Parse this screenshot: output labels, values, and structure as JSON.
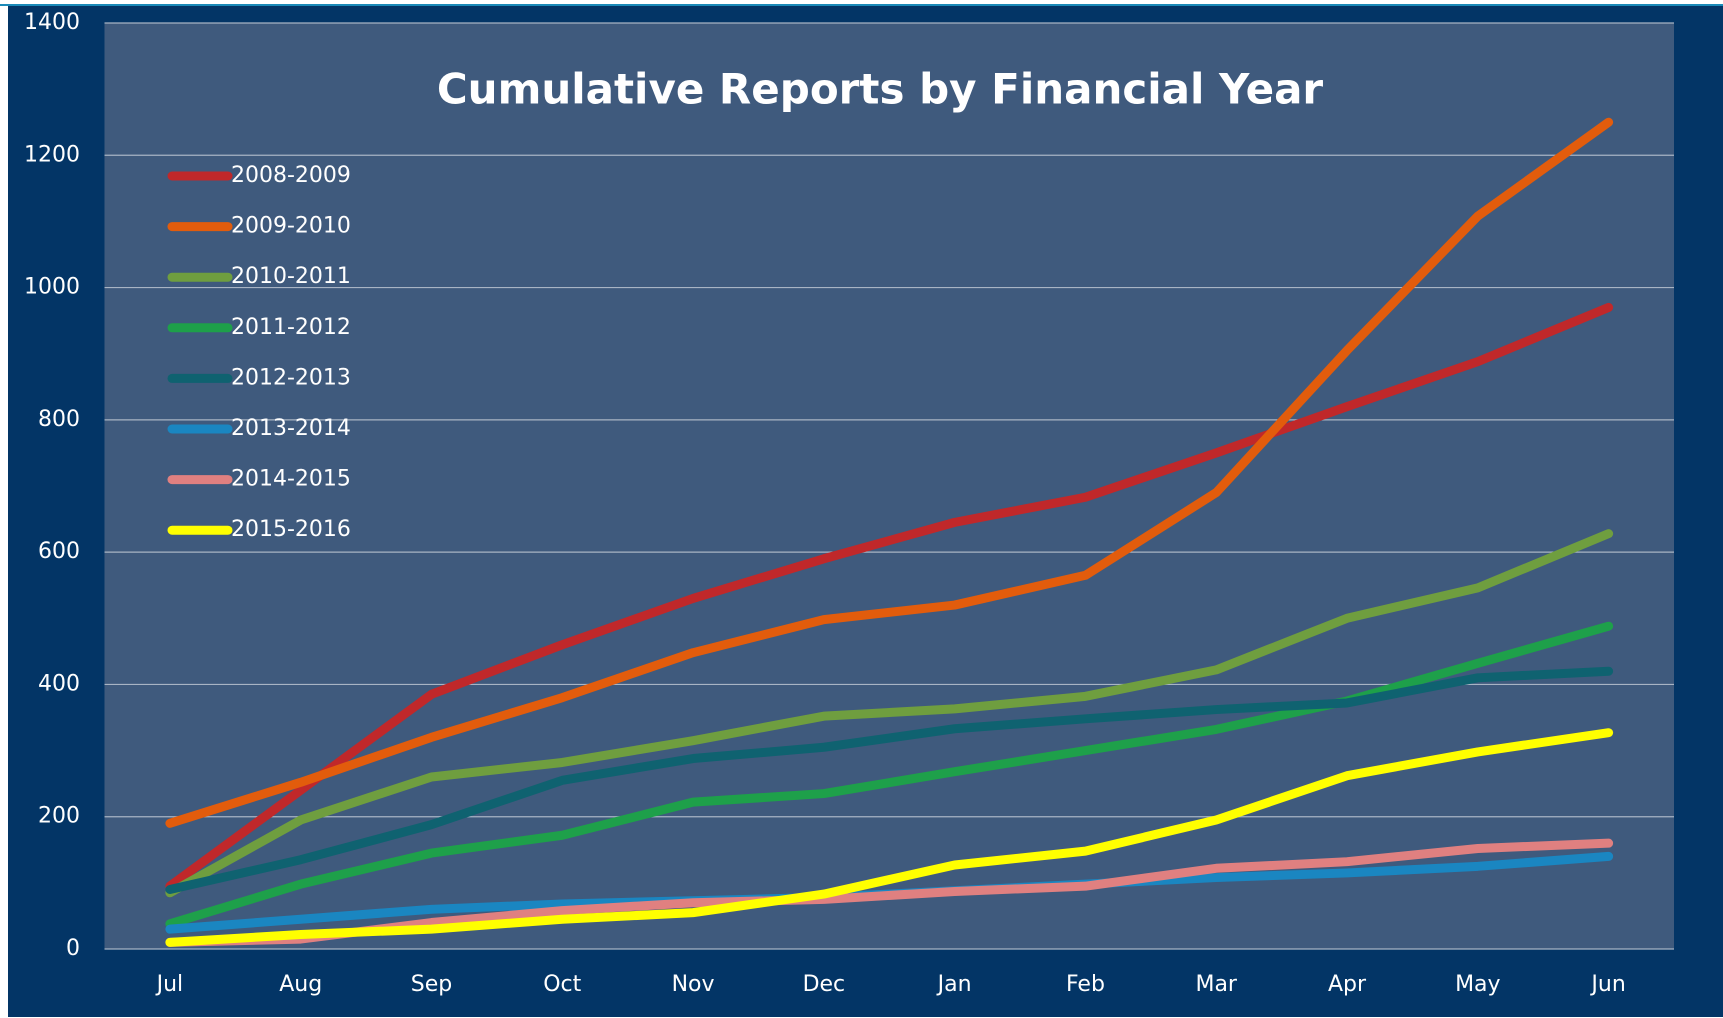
{
  "chart_data": {
    "type": "line",
    "title": "Cumulative Reports by Financial Year",
    "categories": [
      "Jul",
      "Aug",
      "Sep",
      "Oct",
      "Nov",
      "Dec",
      "Jan",
      "Feb",
      "Mar",
      "Apr",
      "May",
      "Jun"
    ],
    "series": [
      {
        "name": "2008-2009",
        "color": "#c0282a",
        "values": [
          95,
          240,
          385,
          460,
          530,
          590,
          645,
          683,
          750,
          820,
          888,
          970
        ]
      },
      {
        "name": "2009-2010",
        "color": "#e25c0c",
        "values": [
          190,
          252,
          320,
          380,
          448,
          498,
          520,
          565,
          690,
          905,
          1108,
          1250
        ]
      },
      {
        "name": "2010-2011",
        "color": "#6f9e3f",
        "values": [
          85,
          195,
          260,
          282,
          315,
          352,
          363,
          382,
          422,
          500,
          546,
          628
        ]
      },
      {
        "name": "2011-2012",
        "color": "#1ea04a",
        "values": [
          38,
          98,
          145,
          172,
          222,
          235,
          268,
          300,
          332,
          375,
          432,
          488
        ]
      },
      {
        "name": "2012-2013",
        "color": "#0f6270",
        "values": [
          90,
          135,
          188,
          255,
          288,
          305,
          333,
          348,
          362,
          372,
          410,
          420
        ]
      },
      {
        "name": "2013-2014",
        "color": "#1a86c1",
        "values": [
          30,
          45,
          60,
          68,
          73,
          78,
          88,
          98,
          108,
          115,
          125,
          140
        ]
      },
      {
        "name": "2014-2015",
        "color": "#e08080",
        "values": [
          10,
          15,
          40,
          58,
          70,
          75,
          87,
          95,
          122,
          132,
          152,
          160
        ]
      },
      {
        "name": "2015-2016",
        "color": "#ffff00",
        "values": [
          10,
          22,
          30,
          45,
          55,
          83,
          127,
          148,
          195,
          262,
          298,
          327
        ]
      }
    ],
    "ylim": [
      0,
      1400
    ],
    "yticks": [
      0,
      200,
      400,
      600,
      800,
      1000,
      1200,
      1400
    ],
    "grid": true,
    "legend": "top-left"
  }
}
